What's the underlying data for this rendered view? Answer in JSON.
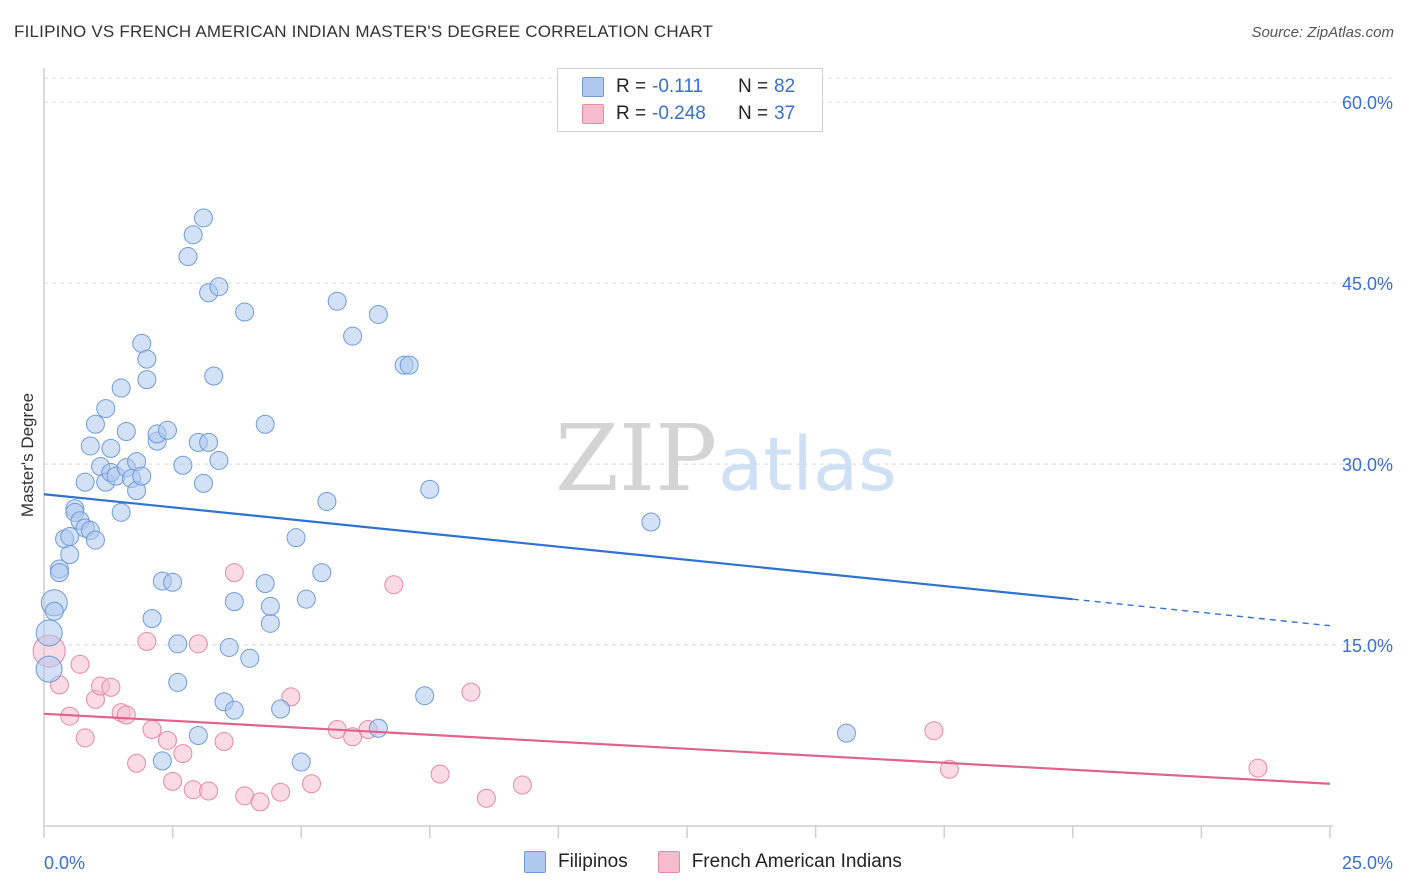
{
  "header": {
    "title": "FILIPINO VS FRENCH AMERICAN INDIAN MASTER'S DEGREE CORRELATION CHART",
    "source": "Source: ZipAtlas.com"
  },
  "watermark": {
    "zip": "ZIP",
    "atlas": "atlas"
  },
  "legend": {
    "rows": [
      {
        "r_label": "R =",
        "r_value": "-0.111",
        "n_label": "N =",
        "n_value": "82"
      },
      {
        "r_label": "R =",
        "r_value": "-0.248",
        "n_label": "N =",
        "n_value": "37"
      }
    ]
  },
  "bottom_legend": [
    {
      "label": "Filipinos"
    },
    {
      "label": "French American Indians"
    }
  ],
  "colors": {
    "filipino_fill": "#aec8ee",
    "filipino_stroke": "#6f9bd8",
    "filipino_line": "#2e72d2",
    "french_fill": "#f6bccd",
    "french_stroke": "#e48aa6",
    "french_line": "#e0628e",
    "tick_label": "#3a6fd0",
    "grid": "#d9d9d9"
  },
  "chart_data": {
    "type": "scatter",
    "title": "FILIPINO VS FRENCH AMERICAN INDIAN MASTER'S DEGREE CORRELATION CHART",
    "xlabel": "",
    "ylabel": "Master's Degree",
    "xlim": [
      0,
      25
    ],
    "ylim": [
      0,
      62
    ],
    "x_tick_labels": [
      "0.0%",
      "25.0%"
    ],
    "y_ticks": [
      15,
      30,
      45,
      60
    ],
    "y_tick_labels": [
      "15.0%",
      "30.0%",
      "45.0%",
      "60.0%"
    ],
    "grid": true,
    "legend_position": "top-center",
    "series": [
      {
        "name": "Filipinos",
        "r": -0.111,
        "n": 82,
        "trend": {
          "x0": 0,
          "y0": 27.5,
          "x1": 20,
          "y1": 18.8,
          "dashed_to_x": 25,
          "dashed_to_y": 16.6
        },
        "points": [
          [
            0.2,
            18.5
          ],
          [
            0.2,
            17.8
          ],
          [
            0.3,
            21.3
          ],
          [
            0.3,
            21
          ],
          [
            0.4,
            23.8
          ],
          [
            0.5,
            22.5
          ],
          [
            0.5,
            24
          ],
          [
            0.6,
            26.3
          ],
          [
            0.6,
            26
          ],
          [
            0.7,
            25.3
          ],
          [
            0.8,
            28.5
          ],
          [
            0.8,
            24.7
          ],
          [
            0.9,
            31.5
          ],
          [
            0.9,
            24.5
          ],
          [
            1.0,
            33.3
          ],
          [
            1.0,
            23.7
          ],
          [
            1.1,
            29.8
          ],
          [
            1.2,
            34.6
          ],
          [
            1.2,
            28.5
          ],
          [
            1.3,
            29.3
          ],
          [
            1.3,
            31.3
          ],
          [
            1.4,
            29
          ],
          [
            1.5,
            36.3
          ],
          [
            1.5,
            26
          ],
          [
            1.6,
            32.7
          ],
          [
            1.6,
            29.7
          ],
          [
            1.7,
            28.8
          ],
          [
            1.8,
            30.2
          ],
          [
            1.8,
            27.8
          ],
          [
            1.9,
            29
          ],
          [
            1.9,
            40
          ],
          [
            2.0,
            38.7
          ],
          [
            2.0,
            37
          ],
          [
            2.1,
            17.2
          ],
          [
            2.2,
            31.9
          ],
          [
            2.2,
            32.5
          ],
          [
            2.3,
            20.3
          ],
          [
            2.3,
            5.4
          ],
          [
            2.4,
            32.8
          ],
          [
            2.5,
            20.2
          ],
          [
            2.6,
            15.1
          ],
          [
            2.6,
            11.9
          ],
          [
            2.7,
            29.9
          ],
          [
            2.8,
            47.2
          ],
          [
            2.9,
            49
          ],
          [
            3.0,
            31.8
          ],
          [
            3.0,
            7.5
          ],
          [
            3.1,
            50.4
          ],
          [
            3.1,
            28.4
          ],
          [
            3.2,
            31.8
          ],
          [
            3.2,
            44.2
          ],
          [
            3.3,
            37.3
          ],
          [
            3.4,
            44.7
          ],
          [
            3.4,
            30.3
          ],
          [
            3.5,
            10.3
          ],
          [
            3.6,
            14.8
          ],
          [
            3.7,
            9.6
          ],
          [
            3.7,
            18.6
          ],
          [
            3.9,
            42.6
          ],
          [
            4.0,
            13.9
          ],
          [
            4.3,
            20.1
          ],
          [
            4.3,
            33.3
          ],
          [
            4.4,
            16.8
          ],
          [
            4.4,
            18.2
          ],
          [
            4.6,
            9.7
          ],
          [
            4.9,
            23.9
          ],
          [
            5.0,
            5.3
          ],
          [
            5.1,
            18.8
          ],
          [
            5.4,
            21
          ],
          [
            5.5,
            26.9
          ],
          [
            5.7,
            43.5
          ],
          [
            6.0,
            40.6
          ],
          [
            6.5,
            8.1
          ],
          [
            6.5,
            42.4
          ],
          [
            7.0,
            38.2
          ],
          [
            7.1,
            38.2
          ],
          [
            7.4,
            10.8
          ],
          [
            7.5,
            27.9
          ],
          [
            11.8,
            25.2
          ],
          [
            15.6,
            7.7
          ],
          [
            0.1,
            16
          ],
          [
            0.1,
            13
          ]
        ],
        "sizes": {
          "large": [
            [
              0.1,
              16
            ],
            [
              0.1,
              13
            ],
            [
              0.2,
              18.5
            ]
          ]
        }
      },
      {
        "name": "French American Indians",
        "r": -0.248,
        "n": 37,
        "trend": {
          "x0": 0,
          "y0": 9.3,
          "x1": 25,
          "y1": 3.5
        },
        "points": [
          [
            0.1,
            14.5
          ],
          [
            0.3,
            11.7
          ],
          [
            0.5,
            9.1
          ],
          [
            0.7,
            13.4
          ],
          [
            0.8,
            7.3
          ],
          [
            1.0,
            10.5
          ],
          [
            1.1,
            11.6
          ],
          [
            1.3,
            11.5
          ],
          [
            1.5,
            9.4
          ],
          [
            1.6,
            9.2
          ],
          [
            1.8,
            5.2
          ],
          [
            2.0,
            15.3
          ],
          [
            2.1,
            8
          ],
          [
            2.4,
            7.1
          ],
          [
            2.5,
            3.7
          ],
          [
            2.7,
            6
          ],
          [
            2.9,
            3
          ],
          [
            3.0,
            15.1
          ],
          [
            3.2,
            2.9
          ],
          [
            3.5,
            7
          ],
          [
            3.7,
            21
          ],
          [
            3.9,
            2.5
          ],
          [
            4.2,
            2
          ],
          [
            4.6,
            2.8
          ],
          [
            4.8,
            10.7
          ],
          [
            5.2,
            3.5
          ],
          [
            5.7,
            8
          ],
          [
            6.0,
            7.4
          ],
          [
            6.3,
            8
          ],
          [
            6.8,
            20
          ],
          [
            7.7,
            4.3
          ],
          [
            8.3,
            11.1
          ],
          [
            8.6,
            2.3
          ],
          [
            9.3,
            3.4
          ],
          [
            17.3,
            7.9
          ],
          [
            17.6,
            4.7
          ],
          [
            23.6,
            4.8
          ]
        ],
        "sizes": {
          "large": [
            [
              0.1,
              14.5
            ]
          ]
        }
      }
    ]
  }
}
